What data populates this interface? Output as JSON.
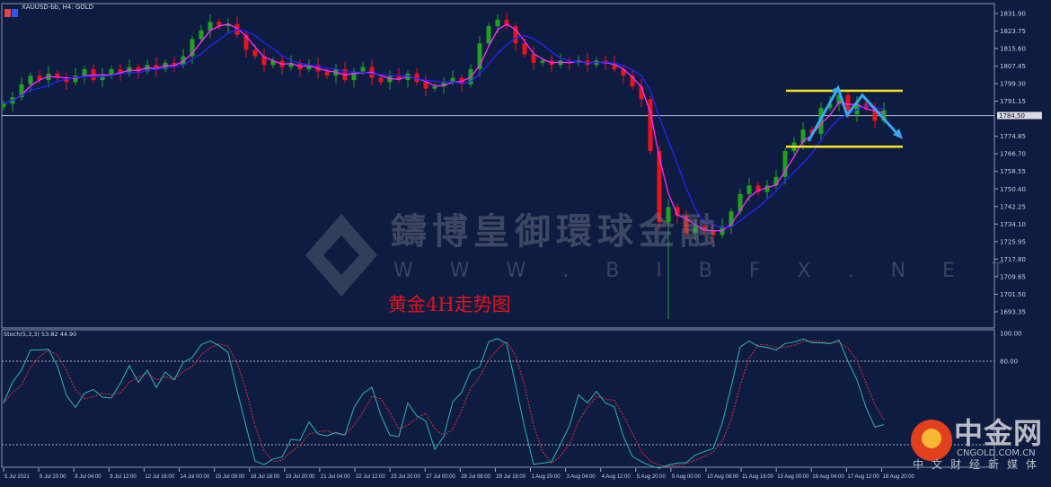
{
  "header": {
    "symbol_title": "XAUUSD-bb, H4:  GOLD"
  },
  "annotation_title": "黄金4H走势图",
  "watermark": {
    "name": "鑄博皇御環球金融",
    "url": "W W W . B I B F X . N E T"
  },
  "logo": {
    "name": "中金网",
    "domain": "CNGOLD.COM.CN",
    "tagline": "中文财经新媒体"
  },
  "colors": {
    "background": "#0f1c41",
    "bull": "#1fa31f",
    "bear": "#e8141c",
    "ma_fast": "#ff2cff",
    "ma_slow": "#2424ff",
    "stoch_main": "#2bb5b5",
    "stoch_signal": "#e0303a",
    "level_lines": "#f5e61e",
    "arrow": "#37a8f0"
  },
  "chart_data": {
    "type": "candlestick",
    "timeframe": "H4",
    "ylim": [
      1689,
      1836
    ],
    "y_ticks": [
      "1831.90",
      "1823.75",
      "1815.60",
      "1807.45",
      "1799.30",
      "1791.15",
      "1774.85",
      "1766.70",
      "1758.55",
      "1750.40",
      "1742.25",
      "1734.10",
      "1725.95",
      "1717.80",
      "1709.65",
      "1701.50",
      "1693.35"
    ],
    "current_price": "1784.50",
    "x_ticks": [
      "5 Jul 2021",
      "6 Jul 20:00",
      "8 Jul 04:00",
      "9 Jul 12:00",
      "12 Jul 16:00",
      "14 Jul 00:00",
      "15 Jul 08:00",
      "16 Jul 16:00",
      "19 Jul 20:00",
      "21 Jul 04:00",
      "22 Jul 12:00",
      "23 Jul 20:00",
      "27 Jul 00:00",
      "28 Jul 08:00",
      "29 Jul 16:00",
      "1 Aug 20:00",
      "3 Aug 04:00",
      "4 Aug 12:00",
      "5 Aug 20:00",
      "9 Aug 00:00",
      "10 Aug 08:00",
      "11 Aug 16:00",
      "13 Aug 00:00",
      "16 Aug 04:00",
      "17 Aug 12:00",
      "18 Aug 20:00"
    ],
    "closes": [
      1790,
      1793,
      1799,
      1803,
      1801,
      1804,
      1802,
      1800,
      1803,
      1806,
      1801,
      1803,
      1806,
      1804,
      1807,
      1805,
      1808,
      1806,
      1809,
      1808,
      1812,
      1820,
      1824,
      1828,
      1826,
      1827,
      1822,
      1815,
      1812,
      1808,
      1810,
      1807,
      1809,
      1806,
      1808,
      1805,
      1803,
      1806,
      1801,
      1805,
      1807,
      1802,
      1800,
      1803,
      1801,
      1804,
      1800,
      1797,
      1798,
      1800,
      1802,
      1799,
      1806,
      1818,
      1826,
      1829,
      1826,
      1818,
      1813,
      1809,
      1810,
      1808,
      1810,
      1809,
      1810,
      1808,
      1810,
      1809,
      1806,
      1803,
      1798,
      1792,
      1768,
      1735,
      1742,
      1738,
      1730,
      1733,
      1731,
      1729,
      1733,
      1740,
      1748,
      1752,
      1749,
      1752,
      1756,
      1768,
      1772,
      1778,
      1776,
      1788,
      1790,
      1794,
      1785,
      1790,
      1788,
      1782,
      1787
    ],
    "spike_low": 1690,
    "resistance": 1796,
    "support": 1770,
    "stochastic": {
      "label": "Stoch(5,3,3) 53.82 44.90",
      "params": [
        5,
        3,
        3
      ],
      "main": 53.82,
      "signal": 44.9,
      "levels": [
        80,
        20
      ],
      "y_ticks": [
        "100.00",
        "80.00"
      ],
      "ylim": [
        0,
        100
      ]
    }
  }
}
